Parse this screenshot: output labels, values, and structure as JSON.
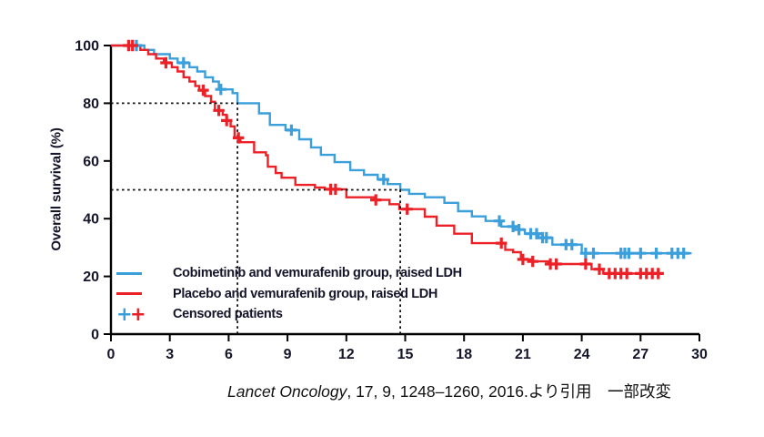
{
  "chart_data": {
    "type": "line",
    "subtype": "kaplan-meier-step",
    "title": "",
    "xlabel": "",
    "ylabel": "Overall survival (%)",
    "xlim": [
      0,
      30
    ],
    "ylim": [
      0,
      100
    ],
    "x_ticks": [
      0,
      3,
      6,
      9,
      12,
      15,
      18,
      21,
      24,
      27,
      30
    ],
    "y_ticks": [
      0,
      20,
      40,
      60,
      80,
      100
    ],
    "grid": false,
    "legend_position": "inside-lower-left",
    "censored_label": "Censored patients",
    "axis_color": "#000000",
    "reference_line_color": "#111111",
    "reference_lines": [
      {
        "y": 80,
        "x": 6.45,
        "style": "dotted"
      },
      {
        "y": 50,
        "x": 14.75,
        "style": "dotted"
      }
    ],
    "series": [
      {
        "id": "cobimetinib",
        "name": "Cobimetinib and vemurafenib group, raised LDH",
        "color": "#3b9fdb",
        "steps": [
          [
            0,
            100
          ],
          [
            1.7,
            98.5
          ],
          [
            2.2,
            97
          ],
          [
            3.0,
            95.5
          ],
          [
            3.4,
            94
          ],
          [
            4.0,
            92.5
          ],
          [
            4.4,
            91
          ],
          [
            4.8,
            89
          ],
          [
            5.2,
            87.5
          ],
          [
            5.5,
            84.8
          ],
          [
            6.2,
            83.5
          ],
          [
            6.45,
            80
          ],
          [
            7.55,
            76.5
          ],
          [
            8.1,
            72.5
          ],
          [
            8.9,
            70.7
          ],
          [
            9.6,
            67.5
          ],
          [
            10.2,
            64.7
          ],
          [
            10.7,
            62.1
          ],
          [
            11.4,
            59.6
          ],
          [
            12.2,
            56.8
          ],
          [
            12.9,
            55.2
          ],
          [
            13.6,
            53.6
          ],
          [
            14.1,
            52
          ],
          [
            14.75,
            50
          ],
          [
            15.2,
            48.6
          ],
          [
            16.0,
            47.4
          ],
          [
            17.0,
            45.5
          ],
          [
            17.7,
            42.6
          ],
          [
            18.4,
            40.8
          ],
          [
            19.1,
            39.2
          ],
          [
            19.9,
            37.3
          ],
          [
            20.6,
            36.2
          ],
          [
            21.1,
            34.8
          ],
          [
            21.8,
            33.4
          ],
          [
            22.5,
            31
          ],
          [
            24.0,
            28
          ],
          [
            29.6,
            28
          ]
        ],
        "censor_t": [
          1.3,
          3.7,
          5.6,
          9.2,
          13.9,
          19.8,
          20.5,
          20.8,
          21.4,
          21.7,
          22.0,
          22.2,
          23.2,
          23.5,
          24.2,
          24.6,
          26.0,
          26.2,
          26.4,
          27.0,
          27.8,
          28.6,
          28.9,
          29.2
        ]
      },
      {
        "id": "placebo",
        "name": "Placebo and vemurafenib group, raised LDH",
        "color": "#ec2127",
        "steps": [
          [
            0,
            100
          ],
          [
            1.5,
            98.5
          ],
          [
            1.9,
            97
          ],
          [
            2.3,
            95.5
          ],
          [
            2.7,
            94
          ],
          [
            3.1,
            92.5
          ],
          [
            3.4,
            91
          ],
          [
            3.7,
            89
          ],
          [
            4.0,
            87.5
          ],
          [
            4.3,
            86
          ],
          [
            4.5,
            84.5
          ],
          [
            4.8,
            82.5
          ],
          [
            5.1,
            80.5
          ],
          [
            5.3,
            77.5
          ],
          [
            5.7,
            76
          ],
          [
            5.9,
            74
          ],
          [
            6.1,
            72
          ],
          [
            6.3,
            68
          ],
          [
            6.6,
            66.5
          ],
          [
            7.3,
            63
          ],
          [
            7.9,
            62
          ],
          [
            8.0,
            58
          ],
          [
            8.4,
            55.8
          ],
          [
            8.7,
            54.2
          ],
          [
            9.4,
            51.7
          ],
          [
            10.4,
            50.8
          ],
          [
            10.9,
            50.2
          ],
          [
            12.0,
            47.4
          ],
          [
            13.5,
            46.5
          ],
          [
            14.2,
            45
          ],
          [
            14.7,
            43.3
          ],
          [
            16.0,
            40.7
          ],
          [
            16.6,
            37.6
          ],
          [
            17.5,
            34.8
          ],
          [
            18.4,
            31.5
          ],
          [
            20.1,
            29.2
          ],
          [
            20.5,
            28.4
          ],
          [
            20.9,
            25.9
          ],
          [
            21.4,
            25.2
          ],
          [
            22.3,
            24.3
          ],
          [
            24.5,
            22.5
          ],
          [
            25.1,
            21
          ],
          [
            28.1,
            21
          ]
        ],
        "censor_t": [
          0.9,
          1.1,
          2.8,
          4.7,
          5.5,
          5.9,
          6.5,
          11.2,
          11.45,
          13.5,
          15.1,
          19.9,
          21.0,
          21.5,
          22.4,
          22.7,
          24.2,
          24.9,
          25.4,
          25.7,
          26.0,
          26.3,
          27.0,
          27.3,
          27.6,
          27.9
        ]
      }
    ]
  },
  "citation": {
    "source": "Lancet Oncology",
    "rest": ", 17, 9, 1248–1260, 2016.より引用　一部改変"
  }
}
